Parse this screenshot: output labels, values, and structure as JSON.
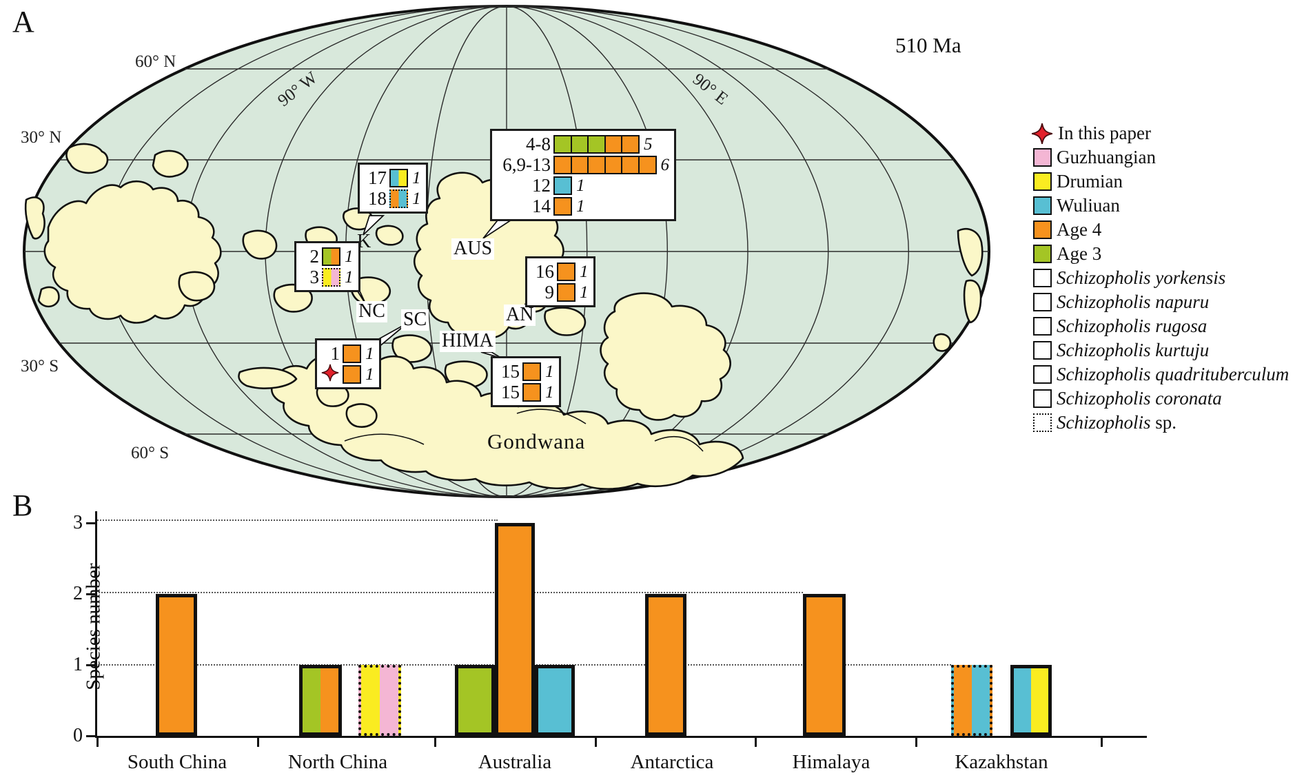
{
  "colors": {
    "sea": "#d8e8db",
    "land": "#fbf7c8",
    "star": "#e2202a",
    "guzhuangian": "#f4b6d4",
    "drumian": "#faec21",
    "wuliuan": "#58bfd3",
    "age4": "#f6921e",
    "age3": "#a4c525"
  },
  "panelA": {
    "label": "A",
    "age_text": "510 Ma",
    "graticule_labels": [
      "60° N",
      "30° N",
      "90° W",
      "90° E",
      "30° S",
      "60° S"
    ],
    "terranes": [
      {
        "id": "K",
        "text": "K"
      },
      {
        "id": "AUS",
        "text": "AUS"
      },
      {
        "id": "NC",
        "text": "NC"
      },
      {
        "id": "SC",
        "text": "SC"
      },
      {
        "id": "HIMA",
        "text": "HIMA"
      },
      {
        "id": "AN",
        "text": "AN"
      },
      {
        "id": "Gondwana",
        "text": "Gondwana"
      }
    ],
    "boxes": [
      {
        "id": "australia-map-box",
        "region": "Australia",
        "rows": [
          {
            "label": "4-8",
            "count": "5",
            "cells": [
              {
                "colors": [
                  "age3"
                ],
                "pattern": "yorkensis"
              },
              {
                "colors": [
                  "age3"
                ],
                "pattern": "yorkensis"
              },
              {
                "colors": [
                  "age3"
                ],
                "pattern": "yorkensis"
              },
              {
                "colors": [
                  "age4"
                ],
                "pattern": "yorkensis"
              },
              {
                "colors": [
                  "age4"
                ],
                "pattern": "yorkensis"
              }
            ]
          },
          {
            "label": "6,9-13",
            "count": "6",
            "cells": [
              {
                "colors": [
                  "age4"
                ],
                "pattern": "napuru"
              },
              {
                "colors": [
                  "age4"
                ],
                "pattern": "napuru"
              },
              {
                "colors": [
                  "age4"
                ],
                "pattern": "napuru"
              },
              {
                "colors": [
                  "age4"
                ],
                "pattern": "napuru"
              },
              {
                "colors": [
                  "age4"
                ],
                "pattern": "napuru"
              },
              {
                "colors": [
                  "age4"
                ],
                "pattern": "napuru"
              }
            ]
          },
          {
            "label": "12",
            "count": "1",
            "cells": [
              {
                "colors": [
                  "wuliuan"
                ],
                "pattern": "kurtuju"
              }
            ]
          },
          {
            "label": "14",
            "count": "1",
            "cells": [
              {
                "colors": [
                  "age4"
                ],
                "pattern": "quadrituberculum"
              }
            ]
          }
        ]
      },
      {
        "id": "kazakhstan-map-box",
        "region": "Kazakhstan",
        "rows": [
          {
            "label": "17",
            "count": "1",
            "cells": [
              {
                "colors": [
                  "wuliuan",
                  "drumian"
                ],
                "pattern": "coronata"
              }
            ]
          },
          {
            "label": "18",
            "count": "1",
            "cells": [
              {
                "colors": [
                  "age4",
                  "wuliuan"
                ],
                "pattern": "",
                "dotted": true
              }
            ]
          }
        ]
      },
      {
        "id": "north-china-map-box",
        "region": "North China",
        "rows": [
          {
            "label": "2",
            "count": "1",
            "cells": [
              {
                "colors": [
                  "age3",
                  "age4"
                ],
                "pattern": "napuru"
              }
            ]
          },
          {
            "label": "3",
            "count": "1",
            "cells": [
              {
                "colors": [
                  "drumian",
                  "guzhuangian"
                ],
                "pattern": "",
                "dotted": true
              }
            ]
          }
        ]
      },
      {
        "id": "south-china-map-box",
        "region": "South China",
        "rows": [
          {
            "label": "1",
            "count": "1",
            "cells": [
              {
                "colors": [
                  "age4"
                ],
                "pattern": "napuru"
              }
            ]
          },
          {
            "label": "",
            "star": true,
            "count": "1",
            "cells": [
              {
                "colors": [
                  "age4"
                ],
                "pattern": "yorkensis"
              }
            ]
          }
        ]
      },
      {
        "id": "antarctica-map-box",
        "region": "Antarctica",
        "rows": [
          {
            "label": "16",
            "count": "1",
            "cells": [
              {
                "colors": [
                  "age4"
                ],
                "pattern": "yorkensis"
              }
            ]
          },
          {
            "label": "9",
            "count": "1",
            "cells": [
              {
                "colors": [
                  "age4"
                ],
                "pattern": "napuru"
              }
            ]
          }
        ]
      },
      {
        "id": "himalaya-map-box",
        "region": "Himalaya",
        "rows": [
          {
            "label": "15",
            "count": "1",
            "cells": [
              {
                "colors": [
                  "age4"
                ],
                "pattern": "napuru"
              }
            ]
          },
          {
            "label": "15",
            "count": "1",
            "cells": [
              {
                "colors": [
                  "age4"
                ],
                "pattern": "rugosa"
              }
            ]
          }
        ]
      }
    ],
    "legend_items": [
      {
        "type": "star",
        "text": "In this paper"
      },
      {
        "type": "color",
        "key": "guzhuangian",
        "text": "Guzhuangian"
      },
      {
        "type": "color",
        "key": "drumian",
        "text": "Drumian"
      },
      {
        "type": "color",
        "key": "wuliuan",
        "text": "Wuliuan"
      },
      {
        "type": "color",
        "key": "age4",
        "text": "Age 4"
      },
      {
        "type": "color",
        "key": "age3",
        "text": "Age 3"
      },
      {
        "type": "pattern",
        "key": "yorkensis",
        "italic": "Schizopholis yorkensis",
        "text": ""
      },
      {
        "type": "pattern",
        "key": "napuru",
        "italic": "Schizopholis napuru",
        "text": ""
      },
      {
        "type": "pattern",
        "key": "rugosa",
        "italic": "Schizopholis rugosa",
        "text": ""
      },
      {
        "type": "pattern",
        "key": "kurtuju",
        "italic": "Schizopholis kurtuju",
        "text": ""
      },
      {
        "type": "pattern",
        "key": "quadrituberculum",
        "italic": "Schizopholis quadrituberculum",
        "text": ""
      },
      {
        "type": "pattern",
        "key": "coronata",
        "italic": "Schizopholis coronata",
        "text": ""
      },
      {
        "type": "dotted",
        "italic": "Schizopholis",
        "text": " sp."
      }
    ]
  },
  "panelB": {
    "label": "B"
  },
  "chart_data": {
    "type": "bar",
    "title": "",
    "xlabel": "",
    "ylabel": "Species number",
    "ylim": [
      0,
      3
    ],
    "yticks": [
      "0",
      "1",
      "2",
      "3"
    ],
    "grid": "dotted horizontal lines at y=1,2,3",
    "legend_position": "none",
    "categories": [
      "South China",
      "North China",
      "Australia",
      "Antarctica",
      "Himalaya",
      "Kazakhstan"
    ],
    "bars": [
      {
        "category": "South China",
        "value": 2,
        "colors": [
          "age4"
        ],
        "border": "solid"
      },
      {
        "category": "North China",
        "value": 1,
        "colors": [
          "age3",
          "age4"
        ],
        "border": "solid"
      },
      {
        "category": "North China",
        "value": 1,
        "colors": [
          "drumian",
          "guzhuangian"
        ],
        "border": "dotted"
      },
      {
        "category": "Australia",
        "value": 1,
        "colors": [
          "age3"
        ],
        "border": "solid"
      },
      {
        "category": "Australia",
        "value": 3,
        "colors": [
          "age4"
        ],
        "border": "solid"
      },
      {
        "category": "Australia",
        "value": 1,
        "colors": [
          "wuliuan"
        ],
        "border": "solid"
      },
      {
        "category": "Antarctica",
        "value": 2,
        "colors": [
          "age4"
        ],
        "border": "solid"
      },
      {
        "category": "Himalaya",
        "value": 2,
        "colors": [
          "age4"
        ],
        "border": "solid"
      },
      {
        "category": "Kazakhstan",
        "value": 1,
        "colors": [
          "age4",
          "wuliuan"
        ],
        "border": "dotted"
      },
      {
        "category": "Kazakhstan",
        "value": 1,
        "colors": [
          "wuliuan",
          "drumian"
        ],
        "border": "solid"
      }
    ]
  }
}
